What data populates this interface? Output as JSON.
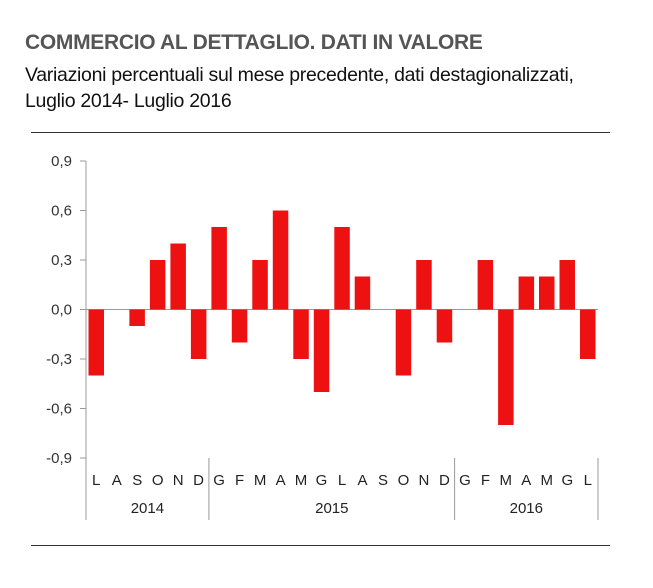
{
  "title": "COMMERCIO AL DETTAGLIO. DATI IN VALORE",
  "subtitle_line1": "Variazioni percentuali sul mese precedente, dati destagionalizzati,",
  "subtitle_line2": "Luglio 2014- Luglio 2016",
  "colors": {
    "bar": "#ee1111",
    "axis": "#999999",
    "text": "#333333"
  },
  "chart_data": {
    "type": "bar",
    "categories": [
      "L",
      "A",
      "S",
      "O",
      "N",
      "D",
      "G",
      "F",
      "M",
      "A",
      "M",
      "G",
      "L",
      "A",
      "S",
      "O",
      "N",
      "D",
      "G",
      "F",
      "M",
      "A",
      "M",
      "G",
      "L"
    ],
    "values": [
      -0.4,
      0.0,
      -0.1,
      0.3,
      0.4,
      -0.3,
      0.5,
      -0.2,
      0.3,
      0.6,
      -0.3,
      -0.5,
      0.5,
      0.2,
      0.0,
      -0.4,
      0.3,
      -0.2,
      0.0,
      0.3,
      -0.7,
      0.2,
      0.2,
      0.3,
      -0.3
    ],
    "years": [
      {
        "label": "2014",
        "start": 0,
        "end": 5
      },
      {
        "label": "2015",
        "start": 6,
        "end": 17
      },
      {
        "label": "2016",
        "start": 18,
        "end": 24
      }
    ],
    "yticks": [
      "0,9",
      "0,6",
      "0,3",
      "0,0",
      "-0,3",
      "-0,6",
      "-0,9"
    ],
    "ytick_values": [
      0.9,
      0.6,
      0.3,
      0.0,
      -0.3,
      -0.6,
      -0.9
    ],
    "ylim": [
      -0.9,
      0.9
    ],
    "grid": false,
    "legend": "none"
  }
}
